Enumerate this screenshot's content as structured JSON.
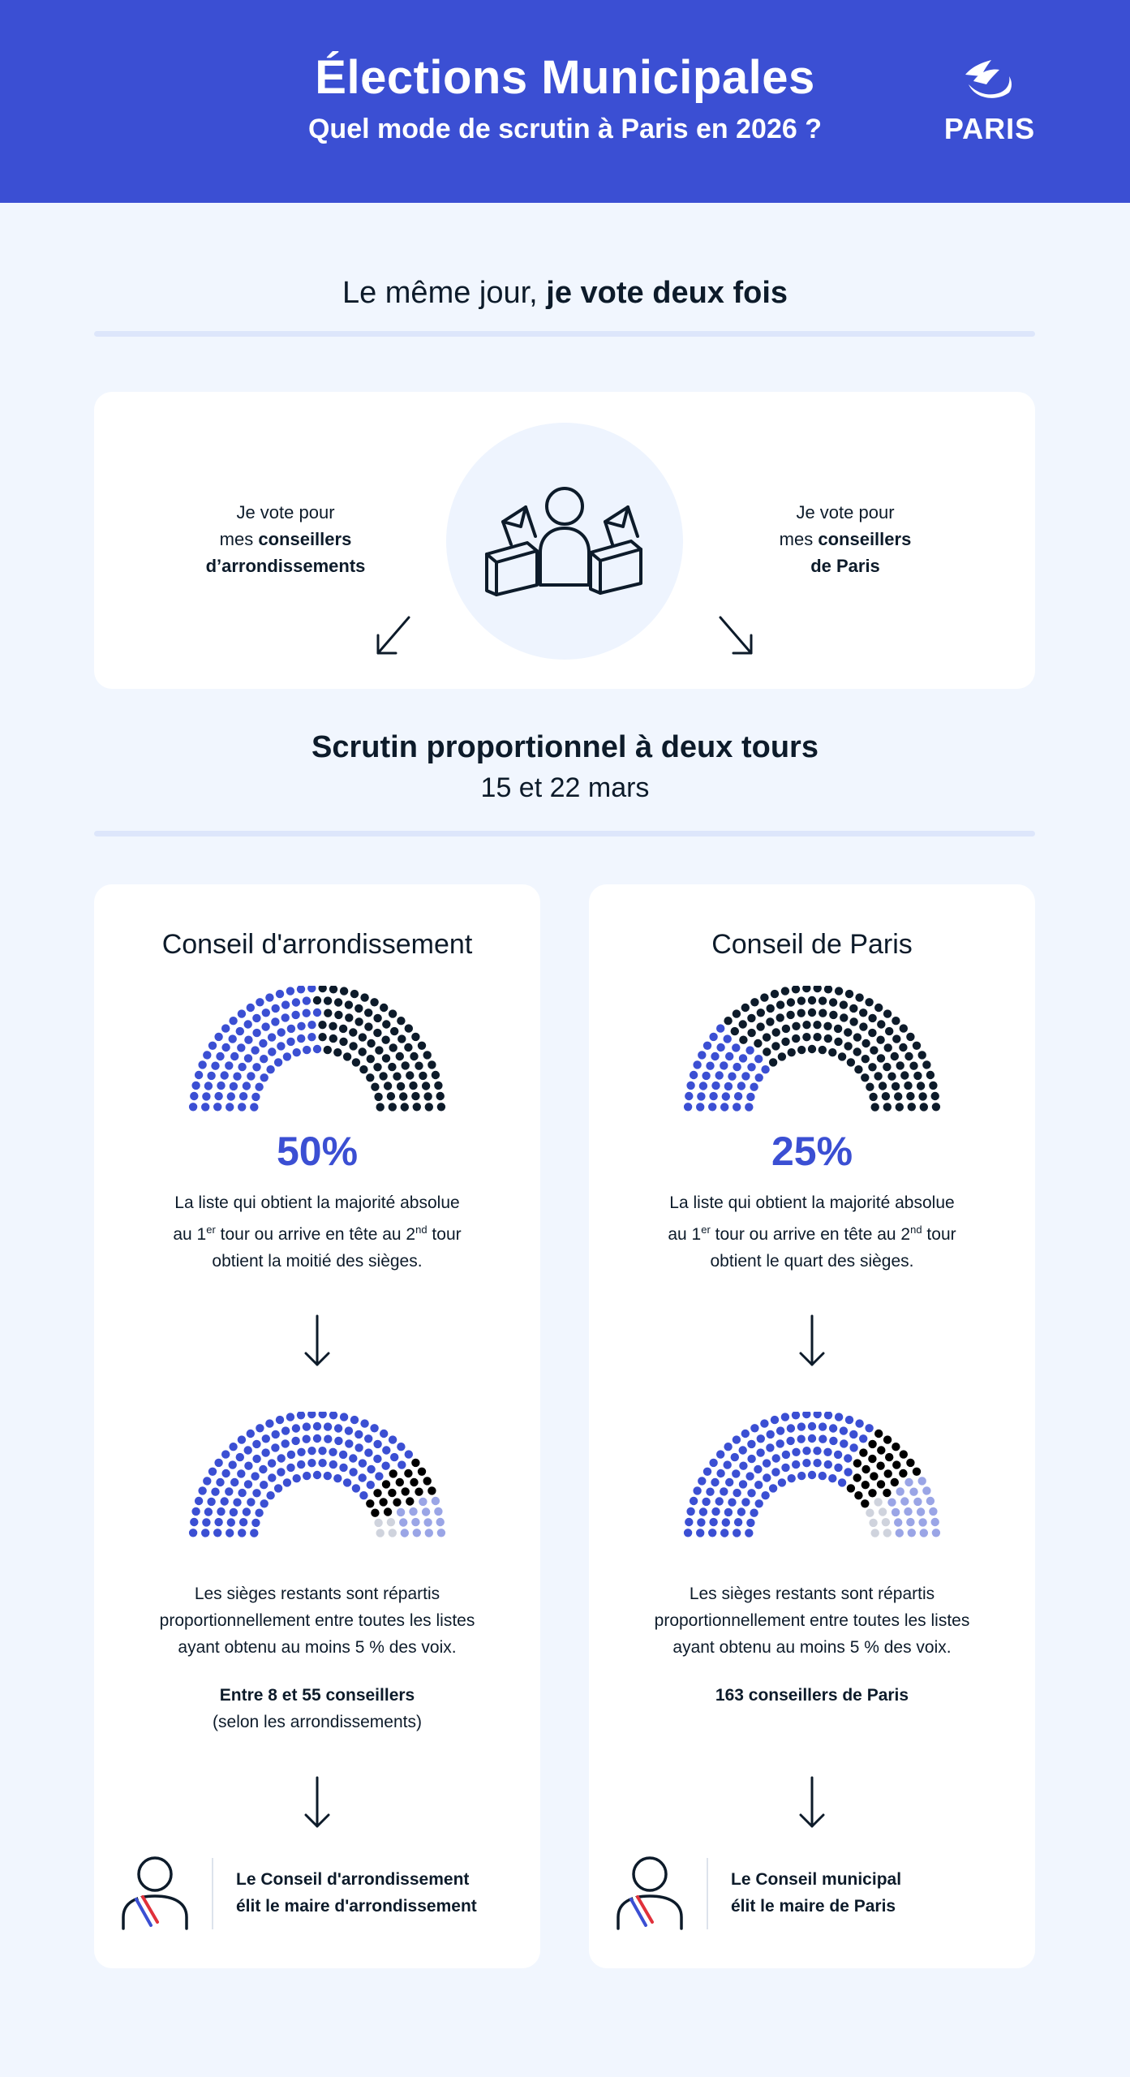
{
  "header": {
    "title": "Élections Municipales",
    "subtitle": "Quel mode de scrutin à Paris en 2026 ?",
    "logo_text": "PARIS"
  },
  "tagline": {
    "prefix": "Le même jour, ",
    "emphasis": "je vote deux fois"
  },
  "vote": {
    "left": {
      "line1": "Je vote pour",
      "line2_prefix": "mes ",
      "line2_bold": "conseillers",
      "line3_bold": "d’arrondissements"
    },
    "right": {
      "line1": "Je vote pour",
      "line2_prefix": "mes ",
      "line2_bold": "conseillers",
      "line3_bold": "de Paris"
    }
  },
  "scrutin": {
    "title": "Scrutin proportionnel à deux tours",
    "dates": "15 et 22 mars"
  },
  "councils": [
    {
      "title": "Conseil d'arrondissement",
      "bonus_percent": "50%",
      "bonus_fraction": 0.5,
      "rule_line1": "La liste qui obtient la majorité absolue",
      "rule_line2a": "au 1",
      "rule_line2_sup1": "er",
      "rule_line2b": " tour ou arrive en tête au 2",
      "rule_line2_sup2": "nd",
      "rule_line2c": " tour",
      "rule_line3": "obtient la moitié des sièges.",
      "remaining_line1": "Les sièges restants sont répartis",
      "remaining_line2": "proportionnellement entre toutes les listes",
      "remaining_line3": "ayant obtenu au moins 5 % des voix.",
      "count_bold": "Entre 8 et 55 conseillers",
      "count_note": "(selon les arrondissements)",
      "mayor_line1": "Le Conseil d'arrondissement",
      "mayor_line2": "élit le maire d'arrondissement"
    },
    {
      "title": "Conseil de Paris",
      "bonus_percent": "25%",
      "bonus_fraction": 0.25,
      "rule_line1": "La liste qui obtient la majorité absolue",
      "rule_line2a": "au 1",
      "rule_line2_sup1": "er",
      "rule_line2b": " tour ou arrive en tête au 2",
      "rule_line2_sup2": "nd",
      "rule_line2c": " tour",
      "rule_line3": "obtient le quart des sièges.",
      "remaining_line1": "Les sièges restants sont répartis",
      "remaining_line2": "proportionnellement entre toutes les listes",
      "remaining_line3": "ayant obtenu au moins 5 % des voix.",
      "count_bold": "163 conseillers de Paris",
      "count_note": "",
      "mayor_line1": "Le Conseil municipal",
      "mayor_line2": "élit le maire de Paris"
    }
  ],
  "colors": {
    "brand_blue": "#3b4fd3",
    "dark": "#0d1b2a",
    "black": "#000000",
    "light_blue": "#9aa5e6",
    "grey": "#cfd3dd"
  }
}
